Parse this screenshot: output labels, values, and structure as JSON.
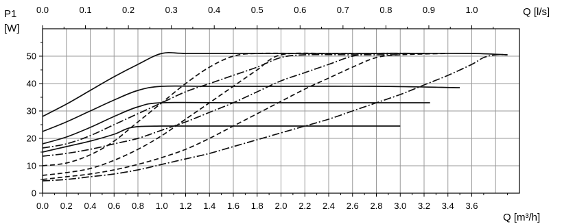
{
  "chart_data": {
    "type": "line",
    "title": "",
    "ylabel_line1": "P1",
    "ylabel_line2": "[W]",
    "xlabel_bottom": "Q [m³/h]",
    "xlabel_top": "Q [l/s]",
    "xlim": [
      0,
      4.0
    ],
    "ylim": [
      0,
      60
    ],
    "x_ticks_bottom": [
      "0.0",
      "0.2",
      "0.4",
      "0.6",
      "0.8",
      "1.0",
      "1.2",
      "1.4",
      "1.6",
      "1.8",
      "2.0",
      "2.2",
      "2.4",
      "2.6",
      "2.8",
      "3.0",
      "3.2",
      "3.4",
      "3.6"
    ],
    "x_ticks_top": [
      "0.0",
      "0.1",
      "0.2",
      "0.3",
      "0.4",
      "0.5",
      "0.6",
      "0.7",
      "0.8",
      "0.9",
      "1.0"
    ],
    "y_ticks": [
      "0",
      "10",
      "20",
      "30",
      "40",
      "50"
    ],
    "grid": true,
    "series": [
      {
        "style": "solid",
        "points": [
          [
            0,
            28
          ],
          [
            0.2,
            32.5
          ],
          [
            0.4,
            37.5
          ],
          [
            0.6,
            42.5
          ],
          [
            0.8,
            47
          ],
          [
            1.0,
            51
          ],
          [
            1.2,
            51
          ],
          [
            1.6,
            51
          ],
          [
            2.0,
            51
          ],
          [
            2.4,
            51
          ],
          [
            2.8,
            51
          ],
          [
            3.2,
            51
          ],
          [
            3.6,
            51
          ],
          [
            3.9,
            50.5
          ]
        ]
      },
      {
        "style": "solid",
        "points": [
          [
            0,
            22.5
          ],
          [
            0.2,
            26
          ],
          [
            0.4,
            30
          ],
          [
            0.6,
            34
          ],
          [
            0.8,
            37.5
          ],
          [
            1.0,
            39
          ],
          [
            1.4,
            39
          ],
          [
            2.0,
            39
          ],
          [
            2.8,
            39
          ],
          [
            3.5,
            38.5
          ]
        ]
      },
      {
        "style": "solid",
        "points": [
          [
            0,
            18
          ],
          [
            0.2,
            20.5
          ],
          [
            0.4,
            24
          ],
          [
            0.6,
            28
          ],
          [
            0.8,
            31.5
          ],
          [
            1.0,
            33
          ],
          [
            1.6,
            33
          ],
          [
            2.4,
            33
          ],
          [
            3.25,
            33
          ]
        ]
      },
      {
        "style": "solid",
        "points": [
          [
            0,
            15
          ],
          [
            0.2,
            17
          ],
          [
            0.4,
            19
          ],
          [
            0.6,
            21.5
          ],
          [
            0.75,
            24
          ],
          [
            1.0,
            24.5
          ],
          [
            1.6,
            24.5
          ],
          [
            2.4,
            24.5
          ],
          [
            3.0,
            24.5
          ]
        ]
      },
      {
        "style": "dashed",
        "points": [
          [
            0,
            10
          ],
          [
            0.2,
            11
          ],
          [
            0.4,
            14
          ],
          [
            0.6,
            19
          ],
          [
            0.8,
            26
          ],
          [
            1.0,
            33
          ],
          [
            1.2,
            40
          ],
          [
            1.4,
            46
          ],
          [
            1.6,
            50
          ],
          [
            1.8,
            51
          ],
          [
            2.2,
            51
          ],
          [
            2.6,
            51
          ]
        ]
      },
      {
        "style": "dashdot",
        "points": [
          [
            0,
            16.5
          ],
          [
            0.2,
            18
          ],
          [
            0.4,
            21
          ],
          [
            0.6,
            25
          ],
          [
            0.8,
            29
          ],
          [
            1.0,
            33
          ],
          [
            1.2,
            37
          ],
          [
            1.4,
            40
          ],
          [
            1.6,
            43
          ],
          [
            1.8,
            46
          ],
          [
            2.0,
            49.5
          ],
          [
            2.2,
            50.5
          ],
          [
            2.6,
            50.5
          ],
          [
            3.0,
            50.5
          ]
        ]
      },
      {
        "style": "dashed",
        "points": [
          [
            0,
            6.5
          ],
          [
            0.2,
            7.5
          ],
          [
            0.4,
            9
          ],
          [
            0.6,
            12
          ],
          [
            0.8,
            16
          ],
          [
            1.0,
            21
          ],
          [
            1.2,
            27
          ],
          [
            1.4,
            33
          ],
          [
            1.6,
            39
          ],
          [
            1.8,
            45
          ],
          [
            2.0,
            50.5
          ],
          [
            2.4,
            51
          ],
          [
            2.8,
            51
          ],
          [
            3.2,
            51
          ]
        ]
      },
      {
        "style": "dashdot",
        "points": [
          [
            0,
            13.5
          ],
          [
            0.2,
            14.5
          ],
          [
            0.4,
            16
          ],
          [
            0.6,
            18
          ],
          [
            0.8,
            20
          ],
          [
            1.0,
            23
          ],
          [
            1.2,
            26
          ],
          [
            1.4,
            29.5
          ],
          [
            1.6,
            33
          ],
          [
            1.8,
            37
          ],
          [
            2.0,
            41
          ],
          [
            2.2,
            44
          ],
          [
            2.4,
            47
          ],
          [
            2.6,
            50
          ],
          [
            2.8,
            51
          ],
          [
            3.2,
            51
          ]
        ]
      },
      {
        "style": "dashed",
        "points": [
          [
            0,
            5
          ],
          [
            0.2,
            6
          ],
          [
            0.4,
            7
          ],
          [
            0.6,
            8.5
          ],
          [
            0.8,
            10.5
          ],
          [
            1.0,
            13
          ],
          [
            1.2,
            16
          ],
          [
            1.4,
            20
          ],
          [
            1.6,
            24.5
          ],
          [
            1.8,
            29
          ],
          [
            2.0,
            33.5
          ],
          [
            2.2,
            38
          ],
          [
            2.4,
            42
          ],
          [
            2.6,
            46
          ],
          [
            2.8,
            49.5
          ],
          [
            3.0,
            50.5
          ],
          [
            3.4,
            51
          ]
        ]
      },
      {
        "style": "dashdot",
        "points": [
          [
            0,
            4.5
          ],
          [
            0.2,
            5
          ],
          [
            0.4,
            6
          ],
          [
            0.6,
            7
          ],
          [
            0.8,
            8.5
          ],
          [
            1.0,
            10.5
          ],
          [
            1.2,
            12.5
          ],
          [
            1.4,
            14.5
          ],
          [
            1.6,
            17
          ],
          [
            1.8,
            19.5
          ],
          [
            2.0,
            22
          ],
          [
            2.2,
            24.5
          ],
          [
            2.4,
            27
          ],
          [
            2.6,
            30
          ],
          [
            2.8,
            33
          ],
          [
            3.0,
            36
          ],
          [
            3.2,
            39.5
          ],
          [
            3.4,
            43
          ],
          [
            3.6,
            47
          ],
          [
            3.7,
            49.5
          ],
          [
            3.8,
            50.5
          ],
          [
            3.9,
            50.5
          ]
        ]
      }
    ]
  }
}
